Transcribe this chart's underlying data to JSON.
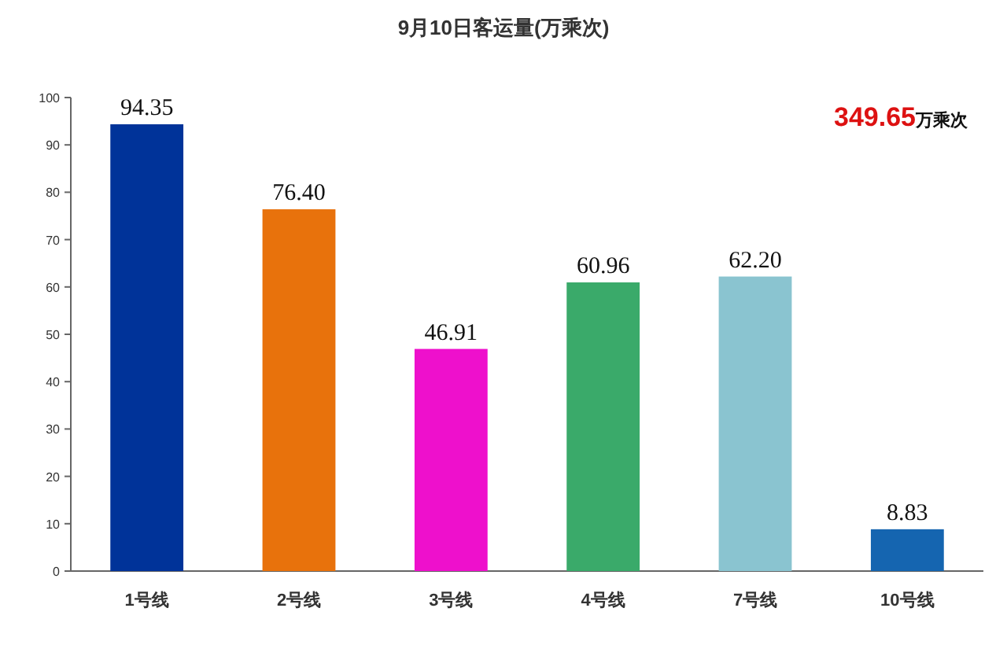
{
  "chart_data": {
    "type": "bar",
    "title": "9月10日客运量(万乘次)",
    "categories": [
      "1号线",
      "2号线",
      "3号线",
      "4号线",
      "7号线",
      "10号线"
    ],
    "values": [
      94.35,
      76.4,
      46.91,
      60.96,
      62.2,
      8.83
    ],
    "value_labels": [
      "94.35",
      "76.40",
      "46.91",
      "60.96",
      "62.20",
      "8.83"
    ],
    "colors": [
      "#003399",
      "#e8720c",
      "#ee10cc",
      "#3aaa6a",
      "#8ac4d0",
      "#1565b0"
    ],
    "ylim": [
      0,
      100
    ],
    "yticks": [
      0,
      10,
      20,
      30,
      40,
      50,
      60,
      70,
      80,
      90,
      100
    ],
    "annotations": [
      "**349.65**万乘次"
    ]
  }
}
